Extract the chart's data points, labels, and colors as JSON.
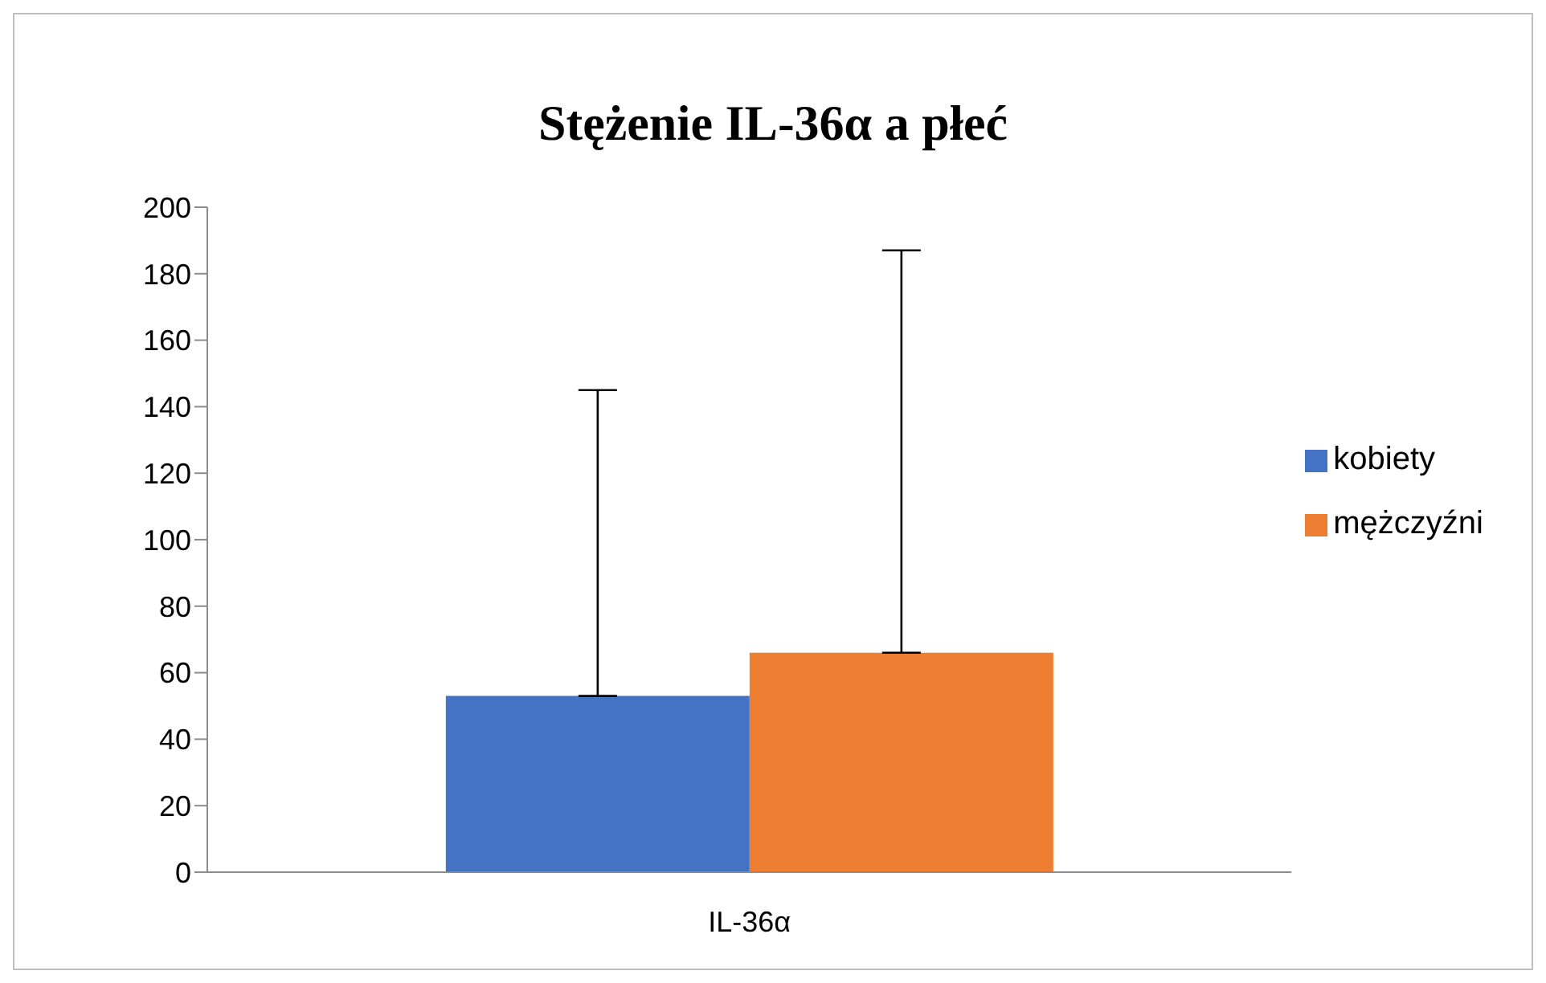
{
  "chart_data": {
    "type": "bar",
    "title": "Stężenie IL-36α a płeć",
    "categories": [
      "IL-36α"
    ],
    "series": [
      {
        "name": "kobiety",
        "color": "#4472c4",
        "values": [
          53
        ],
        "errors": [
          [
            53,
            145
          ]
        ]
      },
      {
        "name": "mężczyźni",
        "color": "#ed7d31",
        "values": [
          66
        ],
        "errors": [
          [
            66,
            187
          ]
        ]
      }
    ],
    "ylim": [
      0,
      200
    ],
    "yticks": [
      0,
      20,
      40,
      60,
      80,
      100,
      120,
      140,
      160,
      180,
      200
    ],
    "grid": false,
    "legend": "right"
  }
}
